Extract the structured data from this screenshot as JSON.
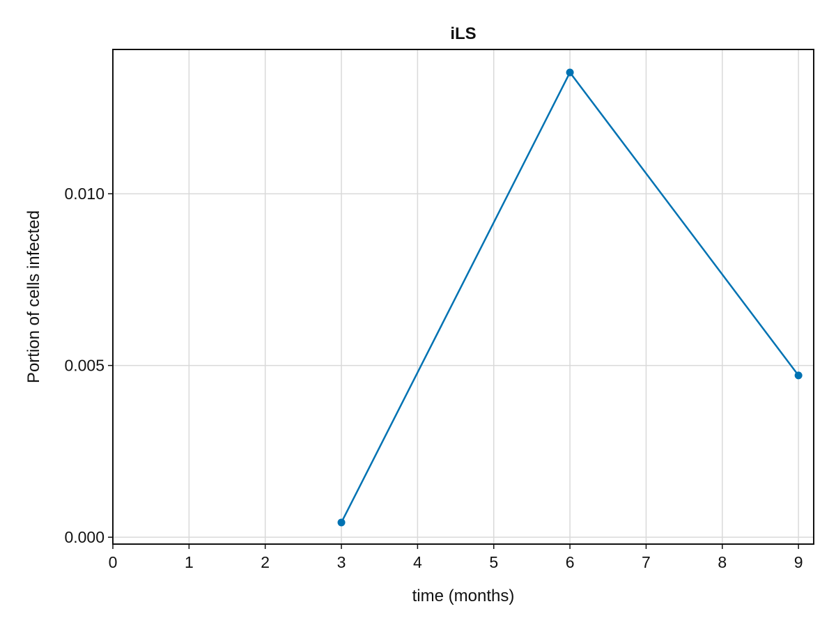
{
  "chart_data": {
    "type": "line",
    "title": "iLS",
    "xlabel": "time (months)",
    "ylabel": "Portion of cells infected",
    "xlim": [
      0,
      9.2
    ],
    "ylim": [
      -0.0002,
      0.0142
    ],
    "xticks": [
      0,
      1,
      2,
      3,
      4,
      5,
      6,
      7,
      8,
      9
    ],
    "xtick_labels": [
      "0",
      "1",
      "2",
      "3",
      "4",
      "5",
      "6",
      "7",
      "8",
      "9"
    ],
    "yticks": [
      0.0,
      0.005,
      0.01
    ],
    "ytick_labels": [
      "0.000",
      "0.005",
      "0.010"
    ],
    "grid": true,
    "series": [
      {
        "color": "#0072b2",
        "x": [
          3,
          6,
          9
        ],
        "y": [
          0.00043,
          0.01353,
          0.00471
        ],
        "marker": "circle"
      }
    ]
  }
}
